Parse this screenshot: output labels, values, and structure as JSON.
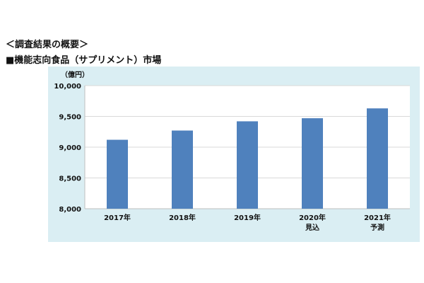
{
  "header": {
    "summary_heading": "＜調査結果の概要＞",
    "chart_title": "■機能志向食品（サプリメント）市場"
  },
  "chart_data": {
    "type": "bar",
    "title": "",
    "unit_label": "（億円）",
    "categories": [
      [
        "2017年"
      ],
      [
        "2018年"
      ],
      [
        "2019年"
      ],
      [
        "2020年",
        "見込"
      ],
      [
        "2021年",
        "予測"
      ]
    ],
    "values": [
      9120,
      9270,
      9420,
      9470,
      9630
    ],
    "ylim": [
      8000,
      10000
    ],
    "yticks": [
      8000,
      8500,
      9000,
      9500,
      10000
    ],
    "ytick_labels": [
      "8,000",
      "8,500",
      "9,000",
      "9,500",
      "10,000"
    ],
    "grid": true,
    "legend": "none",
    "colors": {
      "bar": "#4f81bd",
      "panel_bg": "#daeef3",
      "plot_bg": "#ffffff",
      "grid": "#d9d9d9",
      "axis": "#bfbfbf"
    }
  }
}
